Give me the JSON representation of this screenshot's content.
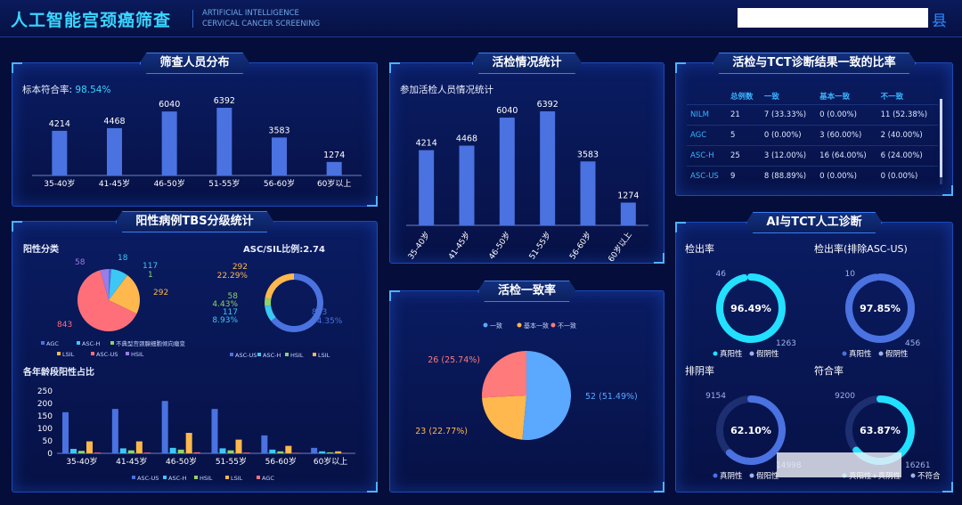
{
  "header": {
    "title": "人工智能宫颈癌筛查",
    "subtitle_line1": "ARTIFICIAL INTELLIGENCE",
    "subtitle_line2": "CERVICAL CANCER SCREENING",
    "county": "县"
  },
  "colors": {
    "bar": "#4a72e0",
    "agc": "#4a72e0",
    "asc_h": "#3cc8f5",
    "atypical": "#8fd36a",
    "lsil": "#ffb84d",
    "asc_us": "#ff6f7a",
    "hsil": "#9a7de6",
    "consistent": "#5aa8ff",
    "basic": "#ffb84d",
    "inconsistent": "#ff7a7a",
    "ring_cyan": "#22e0ff",
    "ring_blue": "#4a72e0",
    "ring_track": "#1d2f70"
  },
  "screening": {
    "title": "筛查人员分布",
    "rate_label": "标本符合率:",
    "rate_value": "98.54%",
    "chart_data": {
      "type": "bar",
      "categories": [
        "35-40岁",
        "41-45岁",
        "46-50岁",
        "51-55岁",
        "56-60岁",
        "60岁以上"
      ],
      "values": [
        4214,
        4468,
        6040,
        6392,
        3583,
        1274
      ],
      "ylim": [
        0,
        6392
      ]
    }
  },
  "biopsy": {
    "title": "活检情况统计",
    "chart_title": "参加活检人员情况统计",
    "chart_data": {
      "type": "bar",
      "categories": [
        "35-40岁",
        "41-45岁",
        "46-50岁",
        "51-55岁",
        "56-60岁",
        "60岁以上"
      ],
      "values": [
        4214,
        4468,
        6040,
        6392,
        3583,
        1274
      ],
      "ylim": [
        0,
        6392
      ]
    }
  },
  "consistency_table": {
    "title": "活检与TCT诊断结果一致的比率",
    "headers": [
      "",
      "总例数",
      "一致",
      "基本一致",
      "不一致"
    ],
    "rows": [
      [
        "NILM",
        "21",
        "7 (33.33%)",
        "0 (0.00%)",
        "11 (52.38%)"
      ],
      [
        "AGC",
        "5",
        "0 (0.00%)",
        "3 (60.00%)",
        "2 (40.00%)"
      ],
      [
        "ASC-H",
        "25",
        "3 (12.00%)",
        "16 (64.00%)",
        "6 (24.00%)"
      ],
      [
        "ASC-US",
        "9",
        "8 (88.89%)",
        "0 (0.00%)",
        "0 (0.00%)"
      ]
    ]
  },
  "tbs": {
    "title": "阳性病例TBS分级统计",
    "positive_label": "阳性分类",
    "ratio_label": "ASC/SIL比例:2.74",
    "age_label": "各年龄段阳性占比",
    "pie": {
      "type": "pie",
      "slices": [
        {
          "name": "AGC",
          "value": 18
        },
        {
          "name": "ASC-H",
          "value": 117
        },
        {
          "name": "不典型宫颈腺细胞倾向瘤变",
          "value": 1
        },
        {
          "name": "LSIL",
          "value": 292
        },
        {
          "name": "ASC-US",
          "value": 843
        },
        {
          "name": "HSIL",
          "value": 58
        }
      ]
    },
    "pie_legend": [
      "AGC",
      "ASC-H",
      "不典型宫颈腺细胞倾向瘤变",
      "LSIL",
      "ASC-US",
      "HSIL"
    ],
    "donut": {
      "type": "pie",
      "slices": [
        {
          "name": "ASC-US",
          "value": 843,
          "label": "843",
          "pct": "64.35%"
        },
        {
          "name": "ASC-H",
          "value": 117,
          "label": "117",
          "pct": "8.93%"
        },
        {
          "name": "HSIL",
          "value": 58,
          "label": "58",
          "pct": "4.43%"
        },
        {
          "name": "LSIL",
          "value": 292,
          "label": "292",
          "pct": "22.29%"
        }
      ]
    },
    "donut_legend": [
      "ASC-US",
      "ASC-H",
      "HSIL",
      "LSIL"
    ],
    "age_chart": {
      "type": "bar",
      "categories": [
        "35-40岁",
        "41-45岁",
        "46-50岁",
        "51-55岁",
        "56-60岁",
        "60岁以上"
      ],
      "yticks": [
        0,
        50,
        100,
        150,
        200,
        250
      ],
      "ylim": [
        0,
        250
      ],
      "series": [
        {
          "name": "ASC-US",
          "values": [
            165,
            178,
            210,
            178,
            72,
            22
          ]
        },
        {
          "name": "ASC-H",
          "values": [
            18,
            20,
            22,
            20,
            15,
            8
          ]
        },
        {
          "name": "HSIL",
          "values": [
            10,
            12,
            15,
            12,
            8,
            4
          ]
        },
        {
          "name": "LSIL",
          "values": [
            48,
            48,
            82,
            55,
            30,
            8
          ]
        },
        {
          "name": "AGC",
          "values": [
            3,
            3,
            4,
            3,
            2,
            1
          ]
        }
      ]
    }
  },
  "biopsy_consistency": {
    "title": "活检一致率",
    "legend": [
      "一致",
      "基本一致",
      "不一致"
    ],
    "chart_data": {
      "type": "pie",
      "slices": [
        {
          "name": "一致",
          "value": 52,
          "label": "52 (51.49%)"
        },
        {
          "name": "基本一致",
          "value": 23,
          "label": "23 (22.77%)"
        },
        {
          "name": "不一致",
          "value": 26,
          "label": "26 (25.74%)"
        }
      ]
    }
  },
  "ai_tct": {
    "title": "AI与TCT人工诊断",
    "rings": [
      {
        "title": "检出率",
        "value": 96.49,
        "center": "96.49%",
        "left_num": "46",
        "right_num": "1263",
        "legend": [
          "真阳性",
          "假阴性"
        ],
        "color": "#22e0ff"
      },
      {
        "title": "检出率(排除ASC-US)",
        "value": 97.85,
        "center": "97.85%",
        "left_num": "10",
        "right_num": "456",
        "legend": [
          "真阳性",
          "假阴性"
        ],
        "color": "#4a72e0"
      },
      {
        "title": "排阴率",
        "value": 62.1,
        "center": "62.10%",
        "left_num": "9154",
        "right_num": "14998",
        "legend": [
          "真阴性",
          "假阳性"
        ],
        "color": "#4a72e0"
      },
      {
        "title": "符合率",
        "value": 63.87,
        "center": "63.87%",
        "left_num": "9200",
        "right_num": "16261",
        "legend": [
          "真阳性+真阴性",
          "不符合"
        ],
        "color": "#22e0ff"
      }
    ]
  }
}
